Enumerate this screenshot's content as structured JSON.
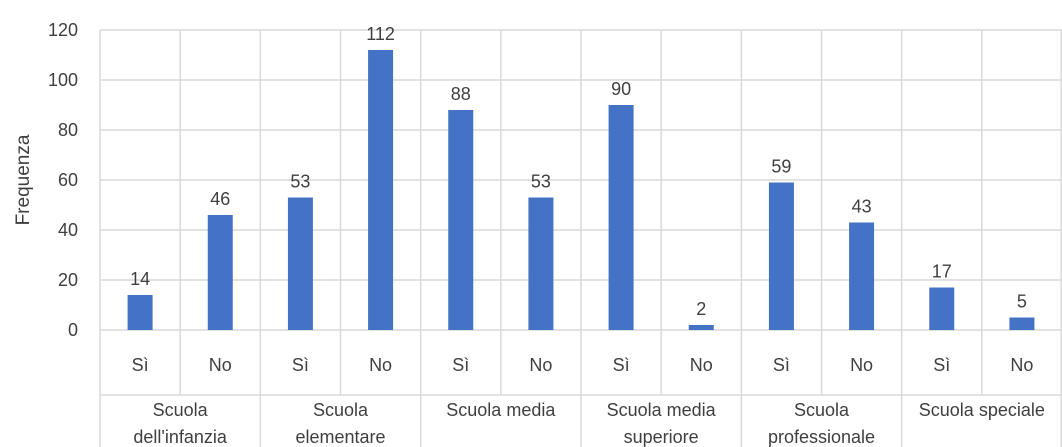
{
  "chart_data": {
    "type": "bar",
    "ylabel": "Frequenza",
    "ylim": [
      0,
      120
    ],
    "yticks": [
      0,
      20,
      40,
      60,
      80,
      100,
      120
    ],
    "grid": true,
    "legend": "none",
    "bar_color": "#4472C4",
    "groups": [
      {
        "label_lines": [
          "Scuola",
          "dell'infanzia"
        ],
        "categories": [
          "Sì",
          "No"
        ],
        "values": [
          14,
          46
        ]
      },
      {
        "label_lines": [
          "Scuola",
          "elementare"
        ],
        "categories": [
          "Sì",
          "No"
        ],
        "values": [
          53,
          112
        ]
      },
      {
        "label_lines": [
          "Scuola media"
        ],
        "categories": [
          "Sì",
          "No"
        ],
        "values": [
          88,
          53
        ]
      },
      {
        "label_lines": [
          "Scuola media",
          "superiore"
        ],
        "categories": [
          "Sì",
          "No"
        ],
        "values": [
          90,
          2
        ]
      },
      {
        "label_lines": [
          "Scuola",
          "professionale"
        ],
        "categories": [
          "Sì",
          "No"
        ],
        "values": [
          59,
          43
        ]
      },
      {
        "label_lines": [
          "Scuola speciale"
        ],
        "categories": [
          "Sì",
          "No"
        ],
        "values": [
          17,
          5
        ]
      }
    ]
  }
}
